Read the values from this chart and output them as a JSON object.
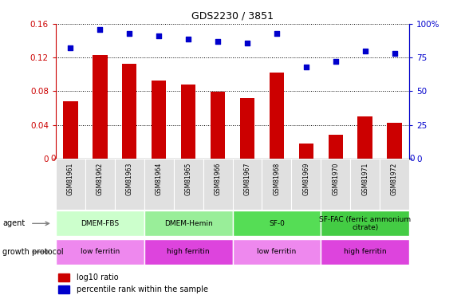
{
  "title": "GDS2230 / 3851",
  "samples": [
    "GSM81961",
    "GSM81962",
    "GSM81963",
    "GSM81964",
    "GSM81965",
    "GSM81966",
    "GSM81967",
    "GSM81968",
    "GSM81969",
    "GSM81970",
    "GSM81971",
    "GSM81972"
  ],
  "log10_ratio": [
    0.068,
    0.123,
    0.113,
    0.093,
    0.088,
    0.079,
    0.072,
    0.102,
    0.018,
    0.028,
    0.05,
    0.042
  ],
  "percentile_rank": [
    82,
    96,
    93,
    91,
    89,
    87,
    86,
    93,
    68,
    72,
    80,
    78
  ],
  "ylim_left": [
    0,
    0.16
  ],
  "ylim_right": [
    0,
    100
  ],
  "bar_color": "#cc0000",
  "scatter_color": "#0000cc",
  "agent_groups": [
    {
      "label": "DMEM-FBS",
      "start": 0,
      "end": 3,
      "color": "#ccffcc"
    },
    {
      "label": "DMEM-Hemin",
      "start": 3,
      "end": 6,
      "color": "#99ee99"
    },
    {
      "label": "SF-0",
      "start": 6,
      "end": 9,
      "color": "#55dd55"
    },
    {
      "label": "SF-FAC (ferric ammonium\ncitrate)",
      "start": 9,
      "end": 12,
      "color": "#44cc44"
    }
  ],
  "growth_groups": [
    {
      "label": "low ferritin",
      "start": 0,
      "end": 3,
      "color": "#ee88ee"
    },
    {
      "label": "high ferritin",
      "start": 3,
      "end": 6,
      "color": "#dd44dd"
    },
    {
      "label": "low ferritin",
      "start": 6,
      "end": 9,
      "color": "#ee88ee"
    },
    {
      "label": "high ferritin",
      "start": 9,
      "end": 12,
      "color": "#dd44dd"
    }
  ],
  "yticks_left": [
    0,
    0.04,
    0.08,
    0.12,
    0.16
  ],
  "ytick_labels_left": [
    "0",
    "0.04",
    "0.08",
    "0.12",
    "0.16"
  ],
  "yticks_right": [
    0,
    25,
    50,
    75,
    100
  ],
  "ytick_labels_right": [
    "0",
    "25",
    "50",
    "75",
    "100%"
  ],
  "legend": [
    {
      "label": "log10 ratio",
      "color": "#cc0000"
    },
    {
      "label": "percentile rank within the sample",
      "color": "#0000cc"
    }
  ]
}
